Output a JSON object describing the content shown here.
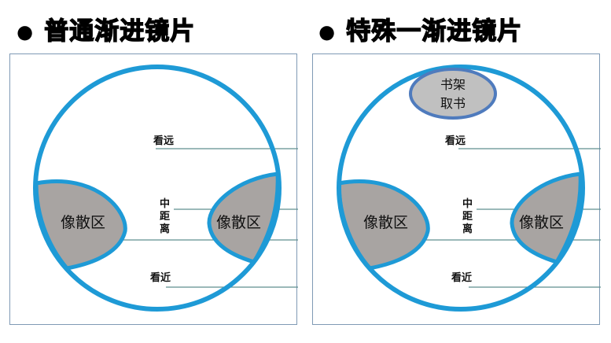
{
  "left": {
    "title": "普通渐进镜片",
    "far": "看远",
    "mid": [
      "中",
      "距",
      "离"
    ],
    "near": "看近",
    "blur_left": "像散区",
    "blur_right": "像散区"
  },
  "right": {
    "title": "特殊一渐进镜片",
    "far": "看远",
    "mid": [
      "中",
      "距",
      "离"
    ],
    "near": "看近",
    "blur_left": "像散区",
    "blur_right": "像散区",
    "oval": [
      "书架",
      "取书"
    ]
  },
  "colors": {
    "ring": "#1e9ad6",
    "blur": "#a8a4a2",
    "line": "#5f8f8f",
    "oval_fill": "#c0c0c0",
    "oval_stroke": "#4f7bbd"
  }
}
